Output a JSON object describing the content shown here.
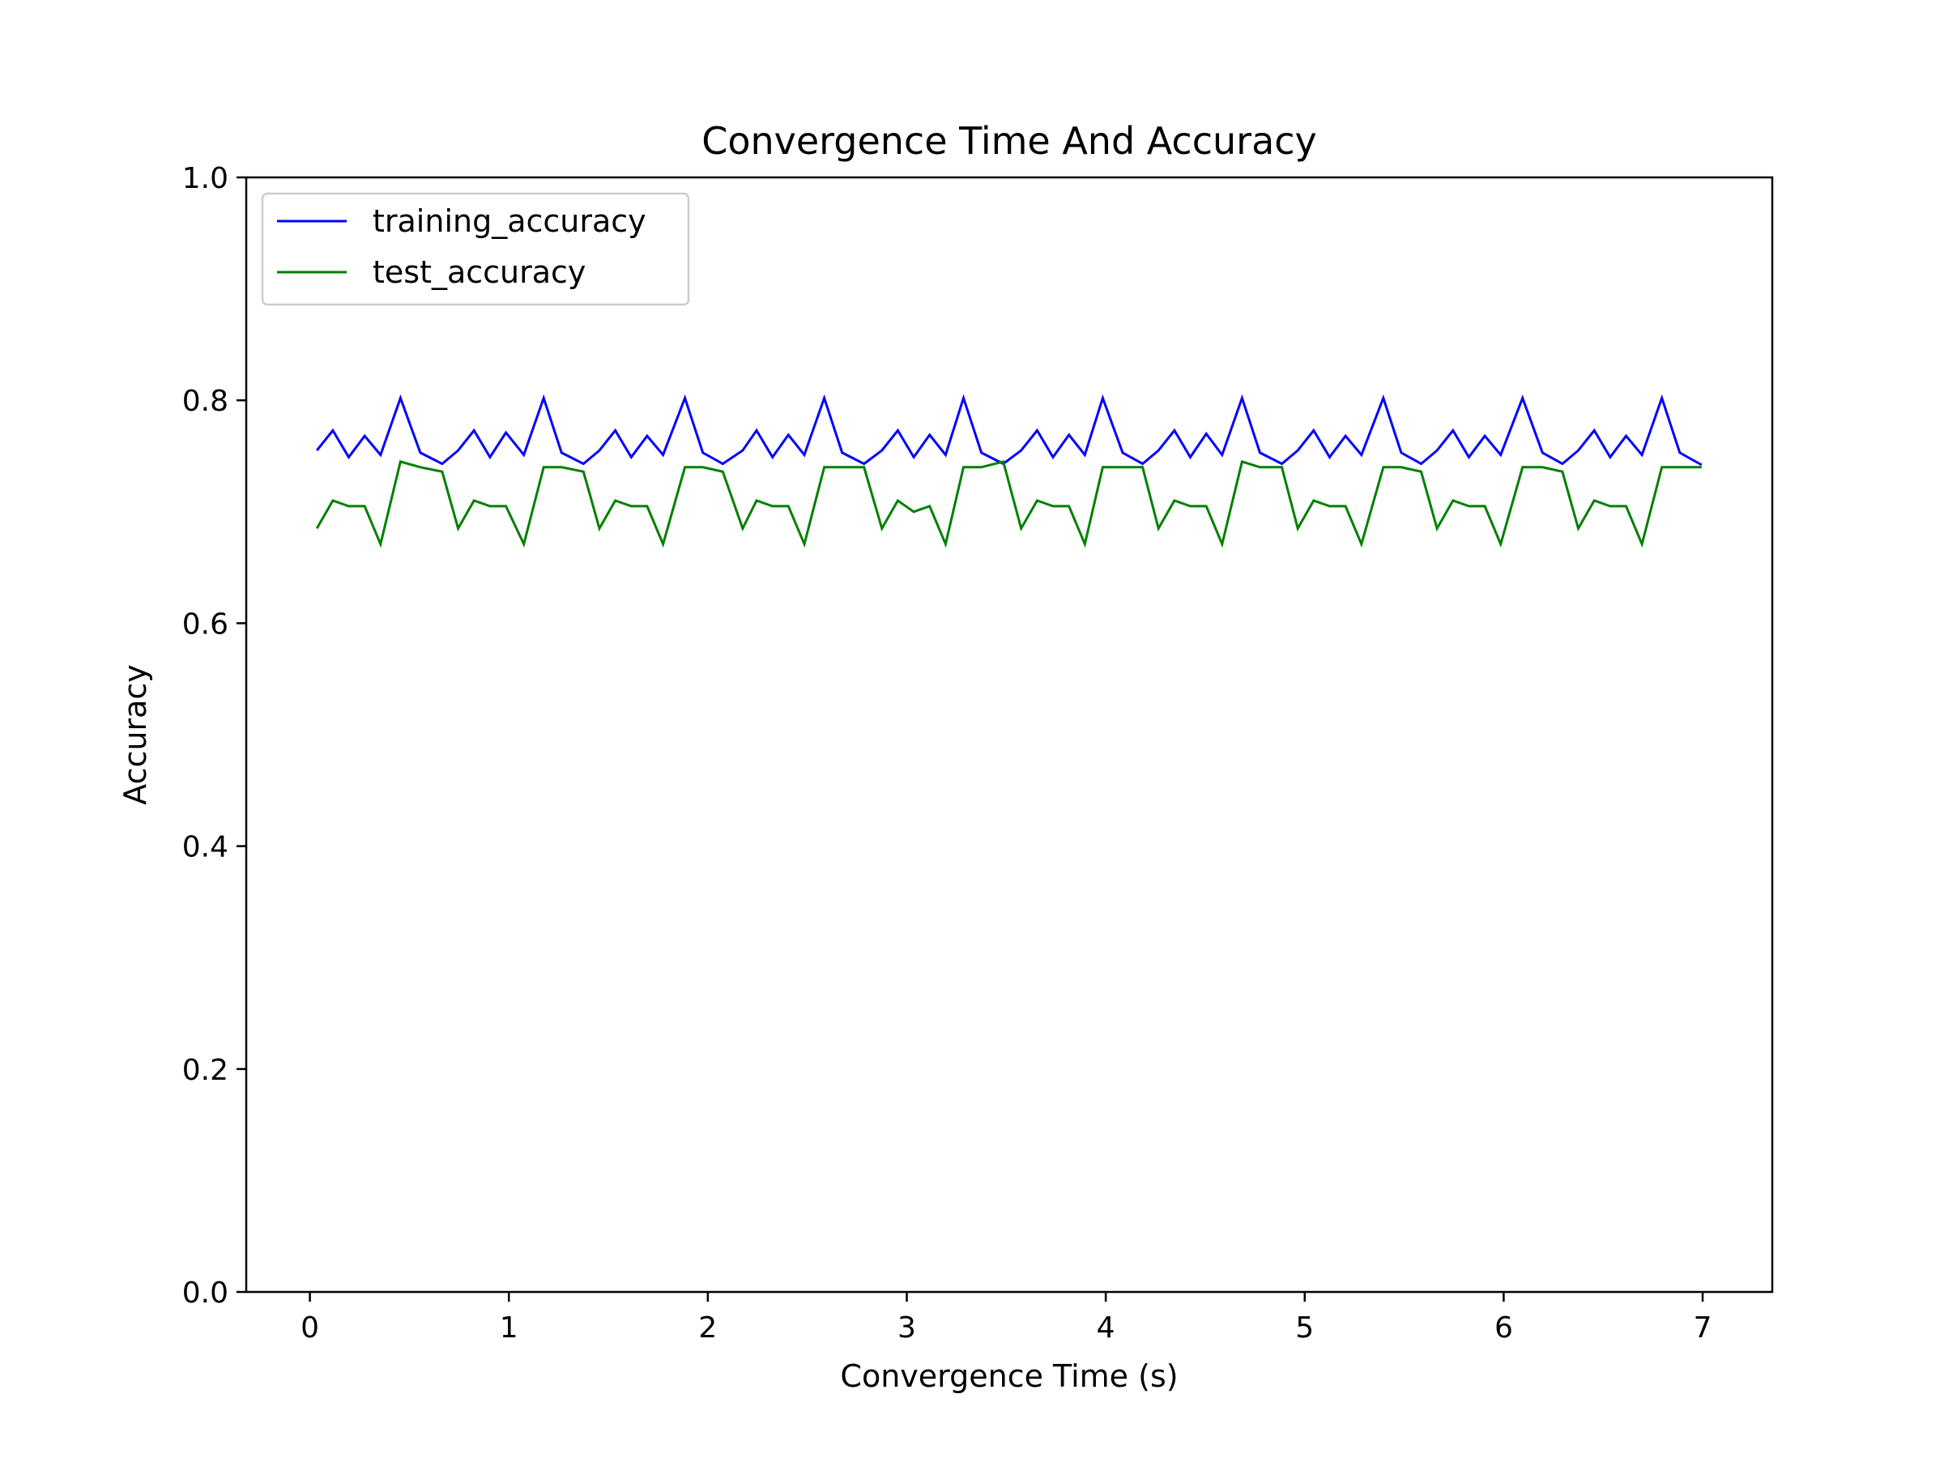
{
  "chart_data": {
    "type": "line",
    "title": "Convergence Time And Accuracy",
    "xlabel": "Convergence Time (s)",
    "ylabel": "Accuracy",
    "xlim": [
      -0.32,
      7.35
    ],
    "ylim": [
      0.0,
      1.0
    ],
    "xticks": [
      0,
      1,
      2,
      3,
      4,
      5,
      6,
      7
    ],
    "yticks": [
      0.0,
      0.2,
      0.4,
      0.6,
      0.8,
      1.0
    ],
    "xtick_labels": [
      "0",
      "1",
      "2",
      "3",
      "4",
      "5",
      "6",
      "7"
    ],
    "ytick_labels": [
      "0.0",
      "0.2",
      "0.4",
      "0.6",
      "0.8",
      "1.0"
    ],
    "grid": false,
    "legend_position": "upper-left",
    "x": [
      0.035,
      0.115,
      0.195,
      0.275,
      0.355,
      0.455,
      0.555,
      0.665,
      0.745,
      0.825,
      0.905,
      0.985,
      1.075,
      1.175,
      1.265,
      1.375,
      1.455,
      1.535,
      1.615,
      1.695,
      1.775,
      1.885,
      1.975,
      2.075,
      2.175,
      2.245,
      2.325,
      2.405,
      2.485,
      2.585,
      2.675,
      2.785,
      2.875,
      2.955,
      3.035,
      3.115,
      3.195,
      3.285,
      3.375,
      3.485,
      3.575,
      3.655,
      3.735,
      3.815,
      3.895,
      3.985,
      4.085,
      4.185,
      4.265,
      4.345,
      4.425,
      4.505,
      4.585,
      4.685,
      4.775,
      4.885,
      4.965,
      5.045,
      5.125,
      5.205,
      5.285,
      5.395,
      5.485,
      5.585,
      5.665,
      5.745,
      5.825,
      5.905,
      5.985,
      6.095,
      6.195,
      6.295,
      6.375,
      6.455,
      6.535,
      6.615,
      6.695,
      6.795,
      6.885,
      6.995
    ],
    "series": [
      {
        "name": "training_accuracy",
        "color": "#0000ff",
        "values": [
          0.755,
          0.773,
          0.749,
          0.768,
          0.751,
          0.802,
          0.753,
          0.743,
          0.755,
          0.773,
          0.749,
          0.771,
          0.751,
          0.802,
          0.753,
          0.743,
          0.755,
          0.773,
          0.749,
          0.768,
          0.751,
          0.802,
          0.753,
          0.743,
          0.755,
          0.773,
          0.749,
          0.769,
          0.751,
          0.802,
          0.753,
          0.743,
          0.755,
          0.773,
          0.749,
          0.769,
          0.751,
          0.802,
          0.753,
          0.743,
          0.755,
          0.773,
          0.749,
          0.769,
          0.751,
          0.802,
          0.753,
          0.743,
          0.755,
          0.773,
          0.749,
          0.77,
          0.751,
          0.802,
          0.753,
          0.743,
          0.755,
          0.773,
          0.749,
          0.768,
          0.751,
          0.802,
          0.753,
          0.743,
          0.755,
          0.773,
          0.749,
          0.768,
          0.751,
          0.802,
          0.753,
          0.743,
          0.755,
          0.773,
          0.749,
          0.768,
          0.751,
          0.802,
          0.753,
          0.742
        ]
      },
      {
        "name": "test_accuracy",
        "color": "#008000",
        "values": [
          0.685,
          0.71,
          0.705,
          0.705,
          0.671,
          0.745,
          0.74,
          0.736,
          0.685,
          0.71,
          0.705,
          0.705,
          0.671,
          0.74,
          0.74,
          0.736,
          0.685,
          0.71,
          0.705,
          0.705,
          0.671,
          0.74,
          0.74,
          0.736,
          0.685,
          0.71,
          0.705,
          0.705,
          0.671,
          0.74,
          0.74,
          0.74,
          0.685,
          0.71,
          0.7,
          0.705,
          0.671,
          0.74,
          0.74,
          0.745,
          0.685,
          0.71,
          0.705,
          0.705,
          0.671,
          0.74,
          0.74,
          0.74,
          0.685,
          0.71,
          0.705,
          0.705,
          0.671,
          0.745,
          0.74,
          0.74,
          0.685,
          0.71,
          0.705,
          0.705,
          0.671,
          0.74,
          0.74,
          0.736,
          0.685,
          0.71,
          0.705,
          0.705,
          0.671,
          0.74,
          0.74,
          0.736,
          0.685,
          0.71,
          0.705,
          0.705,
          0.671,
          0.74,
          0.74,
          0.74
        ]
      }
    ]
  }
}
